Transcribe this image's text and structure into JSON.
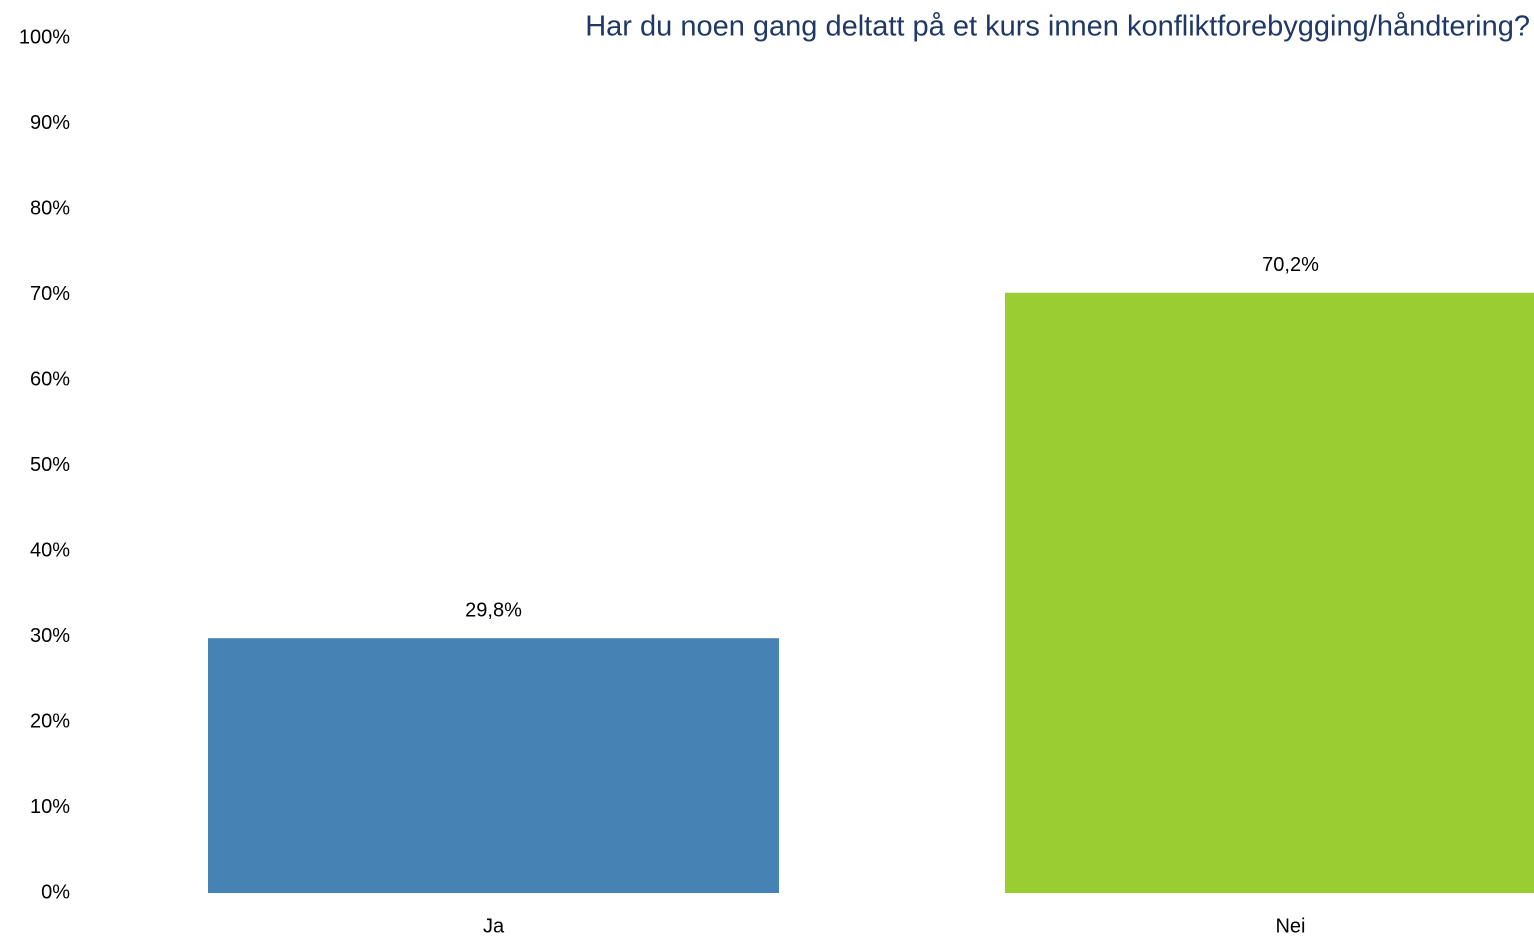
{
  "chart_data": {
    "type": "bar",
    "title": "Har du noen gang deltatt på et kurs innen konfliktforebygging/håndtering?",
    "categories": [
      "Ja",
      "Nei"
    ],
    "values": [
      29.8,
      70.2
    ],
    "value_labels": [
      "29,8%",
      "70,2%"
    ],
    "colors": [
      "#4682b4",
      "#9acd32"
    ],
    "ylim": [
      0,
      100
    ],
    "yticks": [
      {
        "value": 0,
        "label": "0%"
      },
      {
        "value": 10,
        "label": "10%"
      },
      {
        "value": 20,
        "label": "20%"
      },
      {
        "value": 30,
        "label": "30%"
      },
      {
        "value": 40,
        "label": "40%"
      },
      {
        "value": 50,
        "label": "50%"
      },
      {
        "value": 60,
        "label": "60%"
      },
      {
        "value": 70,
        "label": "70%"
      },
      {
        "value": 80,
        "label": "80%"
      },
      {
        "value": 90,
        "label": "90%"
      },
      {
        "value": 100,
        "label": "100%"
      }
    ],
    "grid": false
  }
}
